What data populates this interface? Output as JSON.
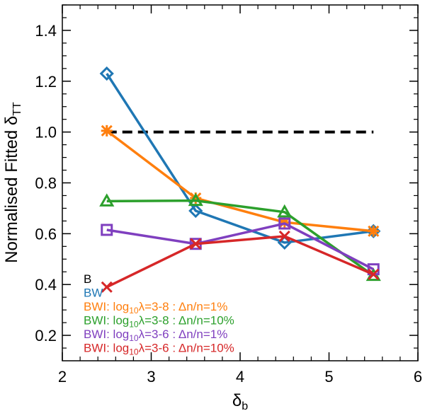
{
  "chart_data": {
    "type": "line",
    "title": "",
    "xlabel": "δ_b",
    "xlabel_main": "δ",
    "xlabel_sub": "b",
    "ylabel": "Normalised Fitted δ_TT",
    "ylabel_main": "Normalised Fitted δ",
    "ylabel_sub": "TT",
    "xlim": [
      2,
      6
    ],
    "ylim": [
      0.1,
      1.5
    ],
    "x_ticks": [
      "2",
      "3",
      "4",
      "5",
      "6"
    ],
    "y_ticks": [
      "0.2",
      "0.4",
      "0.6",
      "0.8",
      "1.0",
      "1.2",
      "1.4"
    ],
    "grid": false,
    "legend_position": "bottom-left",
    "reference_line": {
      "name": "B",
      "y": 1.0,
      "x": [
        2.5,
        5.5
      ],
      "color": "#000000",
      "style": "dashed"
    },
    "series": [
      {
        "name": "BW",
        "color": "#1f77b4",
        "marker": "diamond",
        "x": [
          2.5,
          3.5,
          4.5,
          5.5
        ],
        "values": [
          1.23,
          0.69,
          0.565,
          0.61
        ]
      },
      {
        "name": "BWI: log10λ=3-8 : Δn/n=1%",
        "color": "#ff7f0e",
        "marker": "asterisk",
        "x": [
          2.5,
          3.5,
          4.5,
          5.5
        ],
        "values": [
          1.005,
          0.74,
          0.645,
          0.61
        ]
      },
      {
        "name": "BWI: log10λ=3-8 : Δn/n=10%",
        "color": "#2ca02c",
        "marker": "triangle",
        "x": [
          2.5,
          3.5,
          4.5,
          5.5
        ],
        "values": [
          0.728,
          0.73,
          0.685,
          0.435
        ]
      },
      {
        "name": "BWI: log10λ=3-6 : Δn/n=1%",
        "color": "#7f3fbf",
        "marker": "square",
        "x": [
          2.5,
          3.5,
          4.5,
          5.5
        ],
        "values": [
          0.615,
          0.56,
          0.64,
          0.46
        ]
      },
      {
        "name": "BWI: log10λ=3-6 : Δn/n=10%",
        "color": "#d62728",
        "marker": "cross",
        "x": [
          2.5,
          3.5,
          4.5,
          5.5
        ],
        "values": [
          0.39,
          0.56,
          0.59,
          0.44
        ]
      }
    ],
    "legend": [
      {
        "label": "B",
        "color": "#000000",
        "parts": [
          {
            "t": "B"
          }
        ]
      },
      {
        "label": "BW",
        "color": "#1f77b4",
        "parts": [
          {
            "t": "BW"
          }
        ]
      },
      {
        "label": "BWI: log10λ=3-8 : Δn/n=1%",
        "color": "#ff7f0e",
        "parts": [
          {
            "t": "BWI: log"
          },
          {
            "t": "10",
            "sub": true
          },
          {
            "t": "λ=3-8 : Δn/n=1%"
          }
        ]
      },
      {
        "label": "BWI: log10λ=3-8 : Δn/n=10%",
        "color": "#2ca02c",
        "parts": [
          {
            "t": "BWI: log"
          },
          {
            "t": "10",
            "sub": true
          },
          {
            "t": "λ=3-8 : Δn/n=10%"
          }
        ]
      },
      {
        "label": "BWI: log10λ=3-6 : Δn/n=1%",
        "color": "#7f3fbf",
        "parts": [
          {
            "t": "BWI: log"
          },
          {
            "t": "10",
            "sub": true
          },
          {
            "t": "λ=3-6 : Δn/n=1%"
          }
        ]
      },
      {
        "label": "BWI: log10λ=3-6 : Δn/n=10%",
        "color": "#d62728",
        "parts": [
          {
            "t": "BWI: log"
          },
          {
            "t": "10",
            "sub": true
          },
          {
            "t": "λ=3-6 : Δn/n=10%"
          }
        ]
      }
    ]
  }
}
